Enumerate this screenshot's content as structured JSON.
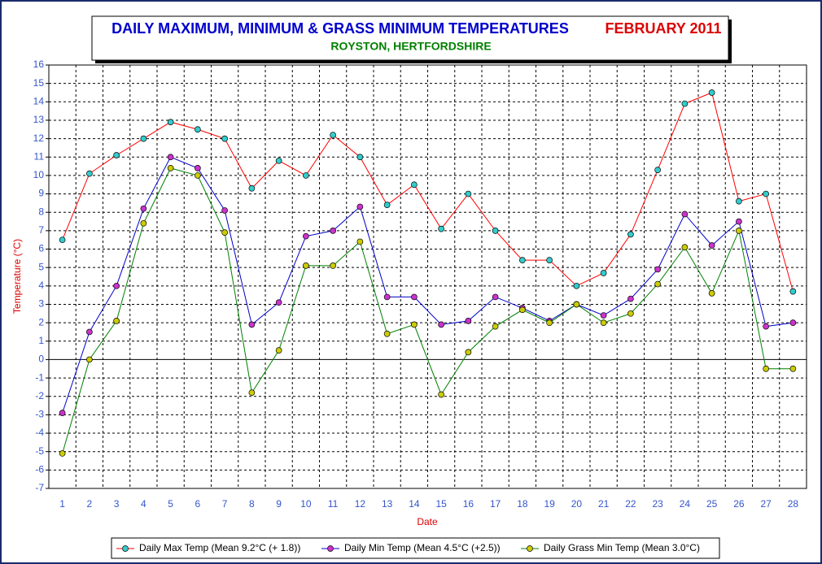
{
  "chart_data": {
    "type": "line",
    "title": "DAILY MAXIMUM, MINIMUM & GRASS MINIMUM TEMPERATURES",
    "title_month": "FEBRUARY 2011",
    "subtitle": "ROYSTON, HERTFORDSHIRE",
    "y_label": "Temperature (°C)",
    "x_label": "Date",
    "categories": [
      "1",
      "2",
      "3",
      "4",
      "5",
      "6",
      "7",
      "8",
      "9",
      "10",
      "11",
      "12",
      "13",
      "14",
      "15",
      "16",
      "17",
      "18",
      "19",
      "20",
      "21",
      "22",
      "23",
      "24",
      "25",
      "26",
      "27",
      "28"
    ],
    "series": [
      {
        "name": "Daily Max Temp (Mean 9.2°C (+ 1.8))",
        "color": "#ff0000",
        "marker_color": "#33cccc",
        "values": [
          6.5,
          10.1,
          11.1,
          12.0,
          12.9,
          12.5,
          12.0,
          9.3,
          10.8,
          10.0,
          12.2,
          11.0,
          8.4,
          9.5,
          7.1,
          9.0,
          7.0,
          5.4,
          5.4,
          4.0,
          4.7,
          6.8,
          10.3,
          13.9,
          14.5,
          8.6,
          9.0,
          3.7
        ]
      },
      {
        "name": "Daily Min Temp (Mean 4.5°C (+2.5))",
        "color": "#0000cc",
        "marker_color": "#cc33cc",
        "values": [
          -2.9,
          1.5,
          4.0,
          8.2,
          11.0,
          10.4,
          8.1,
          1.9,
          3.1,
          6.7,
          7.0,
          8.3,
          3.4,
          3.4,
          1.9,
          2.1,
          3.4,
          2.8,
          2.1,
          3.0,
          2.4,
          3.3,
          4.9,
          7.9,
          6.2,
          7.5,
          1.8,
          2.0
        ]
      },
      {
        "name": "Daily Grass Min Temp (Mean 3.0°C)",
        "color": "#008000",
        "marker_color": "#cccc00",
        "values": [
          -5.1,
          0.0,
          2.1,
          7.4,
          10.4,
          10.0,
          6.9,
          -1.8,
          0.5,
          5.1,
          5.1,
          6.4,
          1.4,
          1.9,
          -1.9,
          0.4,
          1.8,
          2.7,
          2.0,
          3.0,
          2.0,
          2.5,
          4.1,
          6.1,
          3.6,
          7.0,
          -0.5,
          -0.5
        ]
      }
    ],
    "ylim": [
      -7,
      16
    ],
    "yticks": [
      -7,
      -6,
      -5,
      -4,
      -3,
      -2,
      -1,
      0,
      1,
      2,
      3,
      4,
      5,
      6,
      7,
      8,
      9,
      10,
      11,
      12,
      13,
      14,
      15,
      16
    ],
    "grid": true
  }
}
